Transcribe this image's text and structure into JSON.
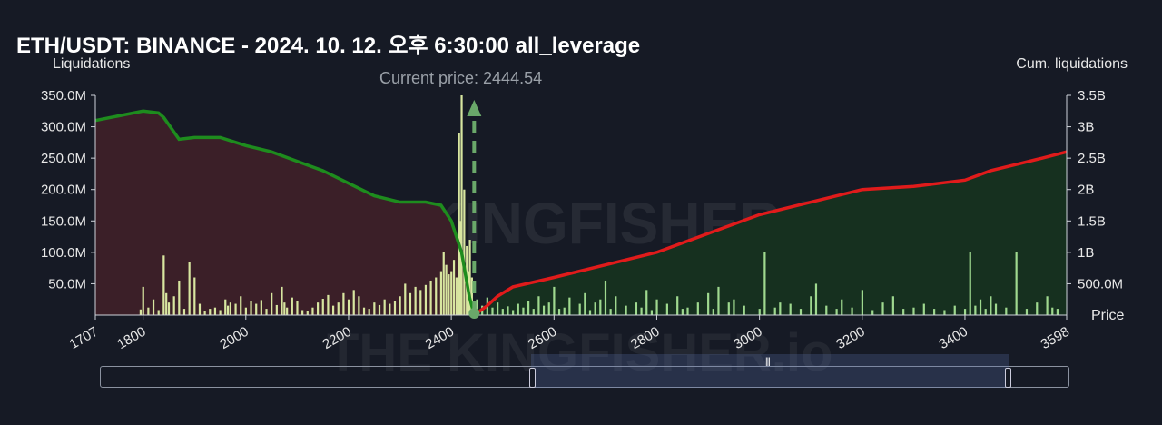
{
  "title": "ETH/USDT: BINANCE - 2024. 10. 12. 오후 6:30:00 all_leverage",
  "current_price_label": "Current price: 2444.54",
  "watermark": "THE KINGFISHER.io",
  "colors": {
    "background": "#161a25",
    "short_side_fill": "#3b1f28",
    "long_side_fill": "#16301f",
    "cum_short_line": "#1e8c1e",
    "cum_long_line": "#e01b1b",
    "bars": "#d8e6a0",
    "bars_right": "#9fd98f",
    "current_price_marker": "#6aa86a"
  },
  "chart_data": {
    "type": "bar",
    "title": "ETH/USDT: BINANCE - 2024. 10. 12. 오후 6:30:00 all_leverage",
    "xlabel": "Price",
    "ylabel": "Liquidations",
    "y2label": "Cum. liquidations",
    "xlim": [
      1707,
      3598
    ],
    "ylim": [
      0,
      350000000
    ],
    "y2lim": [
      0,
      3500000000
    ],
    "x_ticks": [
      "1707",
      "1800",
      "2000",
      "2200",
      "2400",
      "2600",
      "2800",
      "3000",
      "3200",
      "3400",
      "3598"
    ],
    "y_ticks": [
      "50.0M",
      "100.0M",
      "150.0M",
      "200.0M",
      "250.0M",
      "300.0M",
      "350.0M"
    ],
    "y2_ticks": [
      "500.0M",
      "1B",
      "1.5B",
      "2B",
      "2.5B",
      "3B",
      "3.5B"
    ],
    "current_price": 2444.54,
    "bars": [
      [
        1795,
        9000000
      ],
      [
        1800,
        45000000
      ],
      [
        1810,
        12000000
      ],
      [
        1820,
        25000000
      ],
      [
        1830,
        8000000
      ],
      [
        1840,
        95000000
      ],
      [
        1845,
        35000000
      ],
      [
        1850,
        20000000
      ],
      [
        1860,
        30000000
      ],
      [
        1870,
        55000000
      ],
      [
        1880,
        10000000
      ],
      [
        1890,
        85000000
      ],
      [
        1900,
        60000000
      ],
      [
        1910,
        18000000
      ],
      [
        1920,
        6000000
      ],
      [
        1930,
        10000000
      ],
      [
        1940,
        12000000
      ],
      [
        1950,
        8000000
      ],
      [
        1960,
        25000000
      ],
      [
        1965,
        15000000
      ],
      [
        1970,
        20000000
      ],
      [
        1980,
        18000000
      ],
      [
        1990,
        30000000
      ],
      [
        2000,
        12000000
      ],
      [
        2010,
        22000000
      ],
      [
        2020,
        18000000
      ],
      [
        2030,
        24000000
      ],
      [
        2040,
        10000000
      ],
      [
        2050,
        35000000
      ],
      [
        2060,
        16000000
      ],
      [
        2070,
        45000000
      ],
      [
        2075,
        20000000
      ],
      [
        2080,
        12000000
      ],
      [
        2090,
        28000000
      ],
      [
        2100,
        22000000
      ],
      [
        2110,
        8000000
      ],
      [
        2120,
        6000000
      ],
      [
        2130,
        12000000
      ],
      [
        2140,
        20000000
      ],
      [
        2150,
        26000000
      ],
      [
        2160,
        32000000
      ],
      [
        2170,
        15000000
      ],
      [
        2180,
        20000000
      ],
      [
        2190,
        35000000
      ],
      [
        2200,
        25000000
      ],
      [
        2210,
        40000000
      ],
      [
        2220,
        30000000
      ],
      [
        2230,
        12000000
      ],
      [
        2240,
        10000000
      ],
      [
        2250,
        20000000
      ],
      [
        2260,
        16000000
      ],
      [
        2270,
        25000000
      ],
      [
        2280,
        18000000
      ],
      [
        2290,
        22000000
      ],
      [
        2300,
        30000000
      ],
      [
        2310,
        50000000
      ],
      [
        2320,
        35000000
      ],
      [
        2330,
        45000000
      ],
      [
        2340,
        40000000
      ],
      [
        2350,
        48000000
      ],
      [
        2360,
        55000000
      ],
      [
        2370,
        60000000
      ],
      [
        2380,
        70000000
      ],
      [
        2385,
        100000000
      ],
      [
        2390,
        80000000
      ],
      [
        2395,
        65000000
      ],
      [
        2400,
        70000000
      ],
      [
        2405,
        88000000
      ],
      [
        2410,
        60000000
      ],
      [
        2415,
        290000000
      ],
      [
        2418,
        150000000
      ],
      [
        2420,
        350000000
      ],
      [
        2425,
        200000000
      ],
      [
        2430,
        110000000
      ],
      [
        2433,
        70000000
      ],
      [
        2436,
        120000000
      ],
      [
        2440,
        60000000
      ],
      [
        2450,
        25000000
      ],
      [
        2460,
        15000000
      ],
      [
        2470,
        28000000
      ],
      [
        2480,
        12000000
      ],
      [
        2490,
        20000000
      ],
      [
        2500,
        10000000
      ],
      [
        2510,
        14000000
      ],
      [
        2520,
        8000000
      ],
      [
        2530,
        18000000
      ],
      [
        2540,
        12000000
      ],
      [
        2550,
        22000000
      ],
      [
        2560,
        10000000
      ],
      [
        2570,
        30000000
      ],
      [
        2580,
        15000000
      ],
      [
        2590,
        20000000
      ],
      [
        2600,
        45000000
      ],
      [
        2610,
        10000000
      ],
      [
        2620,
        12000000
      ],
      [
        2630,
        28000000
      ],
      [
        2650,
        18000000
      ],
      [
        2660,
        35000000
      ],
      [
        2670,
        8000000
      ],
      [
        2680,
        20000000
      ],
      [
        2690,
        25000000
      ],
      [
        2700,
        55000000
      ],
      [
        2710,
        10000000
      ],
      [
        2720,
        30000000
      ],
      [
        2740,
        15000000
      ],
      [
        2760,
        20000000
      ],
      [
        2770,
        12000000
      ],
      [
        2780,
        40000000
      ],
      [
        2790,
        8000000
      ],
      [
        2800,
        25000000
      ],
      [
        2820,
        18000000
      ],
      [
        2840,
        30000000
      ],
      [
        2850,
        10000000
      ],
      [
        2860,
        12000000
      ],
      [
        2880,
        20000000
      ],
      [
        2900,
        35000000
      ],
      [
        2910,
        10000000
      ],
      [
        2920,
        45000000
      ],
      [
        2940,
        20000000
      ],
      [
        2950,
        25000000
      ],
      [
        2970,
        15000000
      ],
      [
        3000,
        10000000
      ],
      [
        3010,
        100000000
      ],
      [
        3030,
        12000000
      ],
      [
        3040,
        20000000
      ],
      [
        3060,
        18000000
      ],
      [
        3080,
        10000000
      ],
      [
        3100,
        30000000
      ],
      [
        3110,
        50000000
      ],
      [
        3130,
        15000000
      ],
      [
        3150,
        10000000
      ],
      [
        3160,
        25000000
      ],
      [
        3180,
        12000000
      ],
      [
        3200,
        40000000
      ],
      [
        3220,
        8000000
      ],
      [
        3240,
        20000000
      ],
      [
        3260,
        30000000
      ],
      [
        3280,
        10000000
      ],
      [
        3300,
        12000000
      ],
      [
        3320,
        18000000
      ],
      [
        3340,
        10000000
      ],
      [
        3360,
        8000000
      ],
      [
        3380,
        15000000
      ],
      [
        3400,
        10000000
      ],
      [
        3410,
        100000000
      ],
      [
        3420,
        15000000
      ],
      [
        3430,
        25000000
      ],
      [
        3440,
        10000000
      ],
      [
        3450,
        30000000
      ],
      [
        3460,
        18000000
      ],
      [
        3480,
        12000000
      ],
      [
        3500,
        100000000
      ],
      [
        3520,
        10000000
      ],
      [
        3540,
        20000000
      ],
      [
        3560,
        30000000
      ],
      [
        3570,
        12000000
      ],
      [
        3580,
        10000000
      ]
    ],
    "series": [
      {
        "name": "",
        "values": [
          [
            1707,
            3100000000
          ],
          [
            1800,
            3250000000
          ],
          [
            1830,
            3220000000
          ],
          [
            1840,
            3150000000
          ],
          [
            1870,
            2800000000
          ],
          [
            1900,
            2830000000
          ],
          [
            1950,
            2830000000
          ],
          [
            2000,
            2700000000
          ],
          [
            2050,
            2600000000
          ],
          [
            2100,
            2450000000
          ],
          [
            2150,
            2300000000
          ],
          [
            2200,
            2100000000
          ],
          [
            2250,
            1900000000
          ],
          [
            2300,
            1800000000
          ],
          [
            2350,
            1800000000
          ],
          [
            2380,
            1750000000
          ],
          [
            2400,
            1500000000
          ],
          [
            2420,
            1000000000
          ],
          [
            2435,
            300000000
          ],
          [
            2444.54,
            0
          ]
        ]
      },
      {
        "name": "",
        "values": [
          [
            2444.54,
            0
          ],
          [
            2470,
            150000000
          ],
          [
            2490,
            300000000
          ],
          [
            2520,
            450000000
          ],
          [
            2600,
            600000000
          ],
          [
            2700,
            800000000
          ],
          [
            2800,
            1000000000
          ],
          [
            2900,
            1300000000
          ],
          [
            3000,
            1600000000
          ],
          [
            3100,
            1800000000
          ],
          [
            3200,
            2000000000
          ],
          [
            3300,
            2050000000
          ],
          [
            3400,
            2150000000
          ],
          [
            3450,
            2300000000
          ],
          [
            3500,
            2400000000
          ],
          [
            3550,
            2500000000
          ],
          [
            3598,
            2600000000
          ]
        ]
      }
    ]
  }
}
